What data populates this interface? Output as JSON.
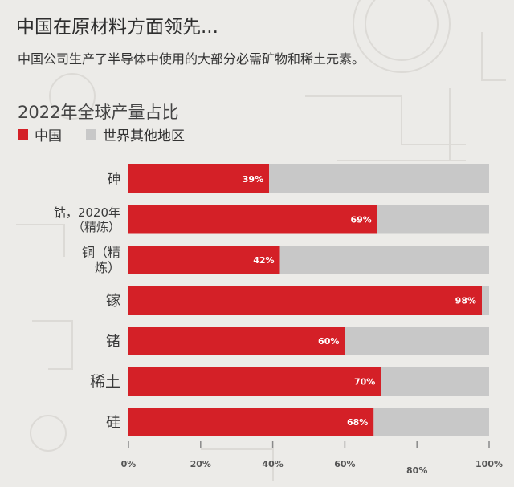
{
  "header": {
    "headline": "中国在原材料方面领先...",
    "subtitle": "中国公司生产了半导体中使用的大部分必需矿物和稀土元素。"
  },
  "chart_data": {
    "type": "bar",
    "orientation": "horizontal",
    "stacked": true,
    "title": "2022年全球产量占比",
    "categories": [
      [
        "砷"
      ],
      [
        "钴，2020年",
        "（精炼）"
      ],
      [
        "铜（精",
        "炼）"
      ],
      [
        "镓"
      ],
      [
        "锗"
      ],
      [
        "稀土"
      ],
      [
        "硅"
      ]
    ],
    "series": [
      {
        "name": "中国",
        "color": "#d42027",
        "values": [
          39,
          69,
          42,
          98,
          60,
          70,
          68
        ]
      },
      {
        "name": "世界其他地区",
        "color": "#c8c8c8",
        "values": [
          61,
          31,
          58,
          2,
          40,
          30,
          32
        ]
      }
    ],
    "data_labels": [
      "39%",
      "69%",
      "42%",
      "98%",
      "60%",
      "70%",
      "68%"
    ],
    "x_ticks": [
      "0%",
      "20%",
      "40%",
      "60%",
      "80%",
      "100%"
    ],
    "xlim": [
      0,
      100
    ],
    "legend_position": "top-left",
    "grid": false
  }
}
